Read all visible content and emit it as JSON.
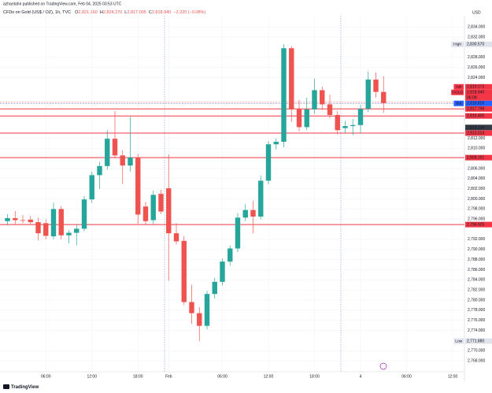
{
  "header": {
    "caption": "azhantahir published on TradingView.com, Feb 04, 2025 03:53 UTC"
  },
  "chart_data": {
    "type": "candlestick",
    "title": "CFDs on Gold (US$ / OZ), 1h, TVC",
    "ohlc_legend": [
      {
        "key": "O",
        "text": "2,821.160"
      },
      {
        "key": "H",
        "text": "2,824.270"
      },
      {
        "key": "L",
        "text": "2,817.005"
      },
      {
        "key": "C",
        "text": "2,818.940"
      }
    ],
    "change": "−2.220 (−0.08%)",
    "currency": "USD",
    "categories": [
      null,
      null,
      null,
      null,
      null,
      "06:00",
      null,
      null,
      null,
      null,
      null,
      "12:00",
      null,
      null,
      null,
      null,
      null,
      "18:00",
      null,
      null,
      null,
      "Feb",
      null,
      null,
      null,
      null,
      null,
      null,
      "06:00",
      null,
      null,
      null,
      null,
      null,
      "12:00",
      null,
      null,
      null,
      null,
      null,
      "18:00",
      null,
      null,
      null,
      null,
      null,
      "4",
      null,
      null,
      null,
      null,
      null,
      "06:00",
      null,
      null,
      null,
      null,
      null,
      "12:00"
    ],
    "open": [
      2795.6,
      2796.2,
      2795.8,
      2795.9,
      2795.4,
      2795.2,
      2792.6,
      2798.0,
      2792.8,
      2793.3,
      2794.1,
      2799.9,
      2804.7,
      2806.5,
      2811.9,
      2808.6,
      2806.6,
      2808.2,
      2798.5,
      2795.8,
      2801.0,
      2802.1,
      2793.2,
      2791.7,
      2779.6,
      2777.4,
      2774.9,
      2781.2,
      2783.6,
      2787.6,
      2790.2,
      2796.3,
      2797.8,
      2796.5,
      2803.6,
      2810.8,
      2811.3,
      2829.8,
      2817.7,
      2814.2,
      2817.7,
      2821.5,
      2818.7,
      2816.6,
      2814.0,
      2814.4,
      2814.6,
      2817.8,
      2823.6,
      2821.16,
      null,
      null,
      null,
      null,
      null,
      null,
      null,
      null,
      null
    ],
    "high": [
      2797.0,
      2797.6,
      2796.8,
      2796.6,
      2796.3,
      2796.0,
      2799.2,
      2798.6,
      2793.8,
      2795.0,
      2800.6,
      2805.4,
      2807.3,
      2813.6,
      2817.4,
      2809.6,
      2816.2,
      2808.9,
      2799.4,
      2801.6,
      2801.8,
      2808.8,
      2795.2,
      2792.6,
      2783.0,
      2778.6,
      2781.8,
      2784.4,
      2788.2,
      2790.8,
      2797.2,
      2799.0,
      2799.6,
      2804.6,
      2811.4,
      2812.0,
      2830.57,
      2830.2,
      2819.6,
      2820.0,
      2823.8,
      2822.2,
      2820.6,
      2817.4,
      2815.4,
      2815.8,
      2818.6,
      2825.2,
      2825.0,
      2824.27,
      null,
      null,
      null,
      null,
      null,
      null,
      null,
      null,
      null
    ],
    "low": [
      2794.8,
      2795.0,
      2795.2,
      2794.9,
      2791.8,
      2792.0,
      2792.0,
      2792.0,
      2791.2,
      2790.8,
      2793.6,
      2799.2,
      2802.0,
      2805.8,
      2808.0,
      2803.0,
      2805.4,
      2795.1,
      2794.9,
      2795.0,
      2797.0,
      2783.8,
      2791.0,
      2779.0,
      2775.3,
      2771.88,
      2774.2,
      2780.3,
      2782.9,
      2786.8,
      2789.5,
      2795.6,
      2793.2,
      2796.0,
      2802.9,
      2809.8,
      2810.2,
      2815.2,
      2813.4,
      2813.6,
      2816.8,
      2817.6,
      2816.0,
      2812.8,
      2813.0,
      2812.6,
      2813.0,
      2817.2,
      2820.0,
      2817.005,
      null,
      null,
      null,
      null,
      null,
      null,
      null,
      null,
      null
    ],
    "close": [
      2796.2,
      2795.8,
      2795.7,
      2795.4,
      2793.2,
      2792.7,
      2798.0,
      2792.8,
      2793.3,
      2794.1,
      2799.9,
      2804.7,
      2806.5,
      2811.9,
      2808.6,
      2806.6,
      2808.2,
      2796.9,
      2795.6,
      2800.8,
      2797.5,
      2793.2,
      2791.6,
      2779.6,
      2777.4,
      2774.9,
      2781.2,
      2783.6,
      2787.6,
      2790.2,
      2796.3,
      2797.8,
      2796.5,
      2803.6,
      2810.8,
      2811.3,
      2829.8,
      2817.7,
      2814.2,
      2817.7,
      2821.5,
      2818.7,
      2816.6,
      2813.6,
      2814.4,
      2814.6,
      2817.8,
      2823.6,
      2821.16,
      2818.94,
      null,
      null,
      null,
      null,
      null,
      null,
      null,
      null,
      null
    ],
    "up_color": "#26a69a",
    "down_color": "#ef5350",
    "ylim": [
      2765.82,
      2836.22
    ],
    "yticks": [
      {
        "value": 2834,
        "label": "2,834.000"
      },
      {
        "value": 2832,
        "label": "2,832.000"
      },
      {
        "value": 2828,
        "label": "2,828.000"
      },
      {
        "value": 2826,
        "label": "2,826.000"
      },
      {
        "value": 2824,
        "label": "2,824.000"
      },
      {
        "value": 2812,
        "label": "2,812.000"
      },
      {
        "value": 2810,
        "label": "2,810.000"
      },
      {
        "value": 2806,
        "label": "2,806.000"
      },
      {
        "value": 2804,
        "label": "2,804.000"
      },
      {
        "value": 2802,
        "label": "2,802.000"
      },
      {
        "value": 2800,
        "label": "2,800.000"
      },
      {
        "value": 2798,
        "label": "2,798.000"
      },
      {
        "value": 2796,
        "label": "2,796.000"
      },
      {
        "value": 2792,
        "label": "2,792.000"
      },
      {
        "value": 2790,
        "label": "2,790.000"
      },
      {
        "value": 2788,
        "label": "2,788.000"
      },
      {
        "value": 2786,
        "label": "2,786.000"
      },
      {
        "value": 2784,
        "label": "2,784.000"
      },
      {
        "value": 2782,
        "label": "2,782.000"
      },
      {
        "value": 2780,
        "label": "2,780.000"
      },
      {
        "value": 2778,
        "label": "2,778.000"
      },
      {
        "value": 2776,
        "label": "2,776.000"
      },
      {
        "value": 2774,
        "label": "2,774.000"
      },
      {
        "value": 2770,
        "label": "2,770.000"
      },
      {
        "value": 2768,
        "label": "2,768.000"
      }
    ],
    "grid": true,
    "price_labels": [
      {
        "name": "High",
        "value": 2830.57,
        "label": "2,830.570",
        "bg": "#e0e3eb",
        "fg": "#131722"
      },
      {
        "name": "Ask",
        "value": 2819.172,
        "label": "2,819.172",
        "bg": "#f23645",
        "fg": "#ffffff",
        "line": "dashed"
      },
      {
        "name": "GOLD",
        "value": 2818.94,
        "label": "2,818.940",
        "countdown": "06:09",
        "bg": "#f23645",
        "fg": "#ffffff",
        "line": "dotted"
      },
      {
        "name": "Bid",
        "value": 2818.826,
        "label": "2,818.826",
        "bg": "#2962ff",
        "fg": "#ffffff",
        "line": "dashed"
      },
      {
        "value": 2817.798,
        "label": "2,817.798",
        "bg": "#f23645",
        "fg": "#ffffff",
        "line": "solid"
      },
      {
        "value": 2816.405,
        "label": "2,816.405",
        "bg": "#f23645",
        "fg": "#ffffff",
        "line": "solid"
      },
      {
        "value": 2814.13,
        "label": "2,814.130",
        "bg": "#363a45",
        "fg": "#ffffff"
      },
      {
        "value": 2813.014,
        "label": "2,813.014",
        "bg": "#f23645",
        "fg": "#ffffff",
        "line": "solid"
      },
      {
        "value": 2808.161,
        "label": "2,808.161",
        "bg": "#f23645",
        "fg": "#ffffff",
        "line": "solid"
      },
      {
        "value": 2794.925,
        "label": "2,794.925",
        "bg": "#f23645",
        "fg": "#ffffff",
        "line": "solid"
      },
      {
        "name": "Low",
        "value": 2771.88,
        "label": "2,771.880",
        "bg": "#e0e3eb",
        "fg": "#131722"
      }
    ]
  },
  "footer": {
    "brand": "TradingView"
  }
}
